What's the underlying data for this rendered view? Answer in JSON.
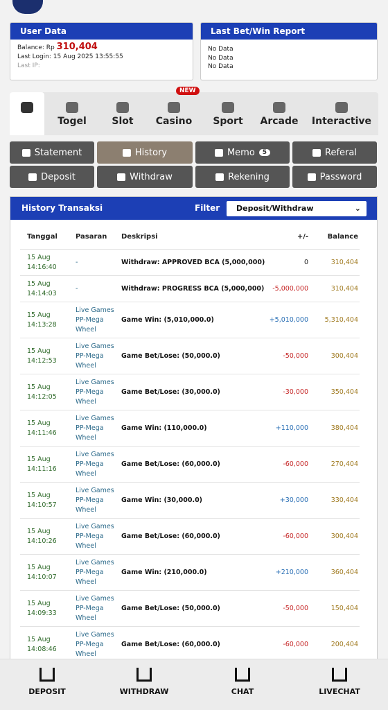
{
  "user_data": {
    "title": "User Data",
    "balance_label": "Balance: Rp",
    "balance": "310,404",
    "last_login": "Last Login: 15 Aug 2025 13:55:55",
    "last_ip": "Last IP:"
  },
  "last_bet": {
    "title": "Last Bet/Win Report",
    "lines": [
      "No Data",
      "No Data",
      "No Data"
    ]
  },
  "game_tabs": {
    "new_badge": "NEW",
    "labels": [
      "Togel",
      "Slot",
      "Casino",
      "Sport",
      "Arcade",
      "Interactive"
    ]
  },
  "menu_buttons": {
    "labels": [
      "Statement",
      "History",
      "Memo",
      "Referal",
      "Deposit",
      "Withdraw",
      "Rekening",
      "Password"
    ],
    "memo_count": "5"
  },
  "history": {
    "title": "History Transaksi",
    "filter_label": "Filter",
    "filter_value": "Deposit/Withdraw",
    "columns": [
      "Tanggal",
      "Pasaran",
      "Deskripsi",
      "+/-",
      "Balance"
    ],
    "rows": [
      {
        "date": "15 Aug",
        "time": "14:16:40",
        "pasaran": [
          "-"
        ],
        "desc": "Withdraw: APPROVED BCA (5,000,000)",
        "change": "0",
        "balance": "310,404"
      },
      {
        "date": "15 Aug",
        "time": "14:14:03",
        "pasaran": [
          "-"
        ],
        "desc": "Withdraw: PROGRESS BCA (5,000,000)",
        "change": "-5,000,000",
        "balance": "310,404"
      },
      {
        "date": "15 Aug",
        "time": "14:13:28",
        "pasaran": [
          "Live Games",
          "PP-Mega",
          "Wheel"
        ],
        "desc": "Game Win: (5,010,000.0)",
        "change": "+5,010,000",
        "balance": "5,310,404"
      },
      {
        "date": "15 Aug",
        "time": "14:12:53",
        "pasaran": [
          "Live Games",
          "PP-Mega",
          "Wheel"
        ],
        "desc": "Game Bet/Lose: (50,000.0)",
        "change": "-50,000",
        "balance": "300,404"
      },
      {
        "date": "15 Aug",
        "time": "14:12:05",
        "pasaran": [
          "Live Games",
          "PP-Mega",
          "Wheel"
        ],
        "desc": "Game Bet/Lose: (30,000.0)",
        "change": "-30,000",
        "balance": "350,404"
      },
      {
        "date": "15 Aug",
        "time": "14:11:46",
        "pasaran": [
          "Live Games",
          "PP-Mega",
          "Wheel"
        ],
        "desc": "Game Win: (110,000.0)",
        "change": "+110,000",
        "balance": "380,404"
      },
      {
        "date": "15 Aug",
        "time": "14:11:16",
        "pasaran": [
          "Live Games",
          "PP-Mega",
          "Wheel"
        ],
        "desc": "Game Bet/Lose: (60,000.0)",
        "change": "-60,000",
        "balance": "270,404"
      },
      {
        "date": "15 Aug",
        "time": "14:10:57",
        "pasaran": [
          "Live Games",
          "PP-Mega",
          "Wheel"
        ],
        "desc": "Game Win: (30,000.0)",
        "change": "+30,000",
        "balance": "330,404"
      },
      {
        "date": "15 Aug",
        "time": "14:10:26",
        "pasaran": [
          "Live Games",
          "PP-Mega",
          "Wheel"
        ],
        "desc": "Game Bet/Lose: (60,000.0)",
        "change": "-60,000",
        "balance": "300,404"
      },
      {
        "date": "15 Aug",
        "time": "14:10:07",
        "pasaran": [
          "Live Games",
          "PP-Mega",
          "Wheel"
        ],
        "desc": "Game Win: (210,000.0)",
        "change": "+210,000",
        "balance": "360,404"
      },
      {
        "date": "15 Aug",
        "time": "14:09:33",
        "pasaran": [
          "Live Games",
          "PP-Mega",
          "Wheel"
        ],
        "desc": "Game Bet/Lose: (50,000.0)",
        "change": "-50,000",
        "balance": "150,404"
      },
      {
        "date": "15 Aug",
        "time": "14:08:46",
        "pasaran": [
          "Live Games",
          "PP-Mega",
          "Wheel"
        ],
        "desc": "Game Bet/Lose: (60,000.0)",
        "change": "-60,000",
        "balance": "200,404"
      }
    ]
  },
  "bottom_nav": [
    "DEPOSIT",
    "WITHDRAW",
    "CHAT",
    "LIVECHAT"
  ]
}
